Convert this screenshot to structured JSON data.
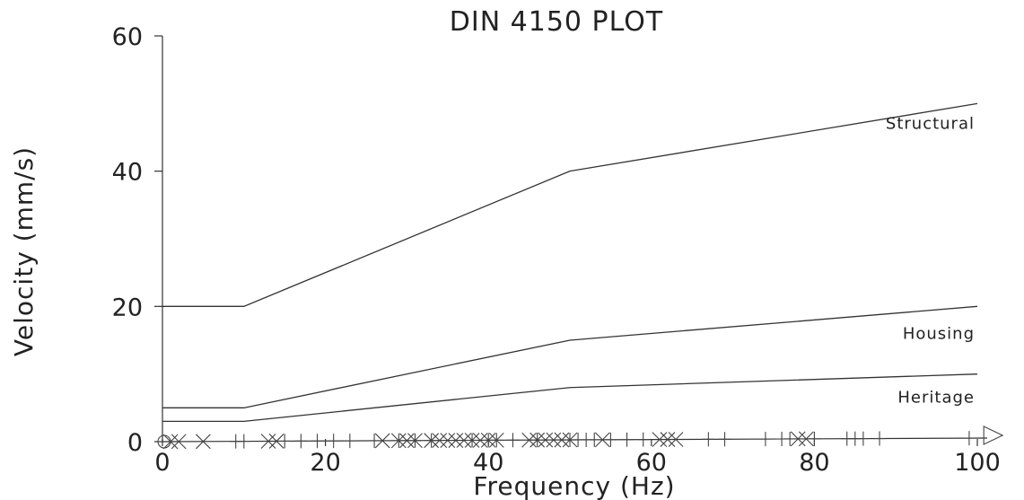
{
  "chart_data": {
    "type": "line",
    "title": "DIN 4150 PLOT",
    "xlabel": "Frequency (Hz)",
    "ylabel": "Velocity (mm/s)",
    "xlim": [
      0,
      100
    ],
    "ylim": [
      0,
      60
    ],
    "x_ticks": [
      "0",
      "20",
      "40",
      "60",
      "80",
      "100"
    ],
    "y_ticks": [
      "0",
      "20",
      "40",
      "60"
    ],
    "grid": false,
    "series": [
      {
        "name": "Structural",
        "x": [
          0,
          10,
          50,
          100
        ],
        "y": [
          20,
          20,
          40,
          50
        ]
      },
      {
        "name": "Housing",
        "x": [
          0,
          10,
          50,
          100
        ],
        "y": [
          5,
          5,
          15,
          20
        ]
      },
      {
        "name": "Heritage",
        "x": [
          0,
          10,
          50,
          100
        ],
        "y": [
          3,
          3,
          8,
          10
        ]
      }
    ],
    "events": {
      "plus": [
        9,
        10,
        15,
        17,
        19,
        21,
        23,
        26,
        29,
        31,
        33,
        38,
        40,
        41,
        43,
        46,
        50,
        51,
        52,
        53,
        55,
        57,
        59,
        67,
        69,
        74,
        76,
        77,
        80,
        84,
        85,
        86,
        88,
        99
      ],
      "cross": [
        1,
        2,
        5,
        13,
        14,
        27,
        29,
        30,
        31,
        33,
        34,
        35,
        36,
        37,
        38,
        39,
        40,
        41,
        45,
        46,
        47,
        48,
        49,
        50,
        54,
        61,
        62,
        63,
        78,
        79
      ],
      "circle": [
        0
      ],
      "triangle": [
        102
      ]
    }
  }
}
